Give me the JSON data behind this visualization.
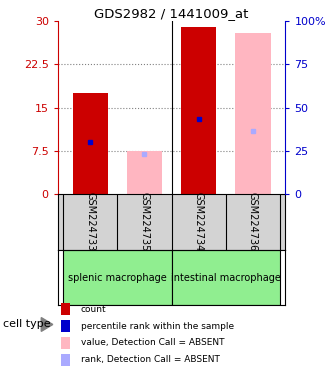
{
  "title": "GDS2982 / 1441009_at",
  "samples": [
    "GSM224733",
    "GSM224735",
    "GSM224734",
    "GSM224736"
  ],
  "red_bar_values": [
    17.5,
    null,
    29.0,
    null
  ],
  "pink_bar_values": [
    null,
    7.5,
    null,
    28.0
  ],
  "blue_marker_values": [
    9.0,
    null,
    13.0,
    null
  ],
  "light_blue_marker_values": [
    null,
    7.0,
    null,
    11.0
  ],
  "ylim": [
    0,
    30
  ],
  "yticks_left": [
    0,
    7.5,
    15,
    22.5,
    30
  ],
  "yticks_right_labels": [
    "0",
    "25",
    "50",
    "75",
    "100%"
  ],
  "yticks_right_values": [
    0,
    7.5,
    15,
    22.5,
    30
  ],
  "groups": [
    {
      "label": "splenic macrophage",
      "indices": [
        0,
        1
      ],
      "color": "#90EE90"
    },
    {
      "label": "intestinal macrophage",
      "indices": [
        2,
        3
      ],
      "color": "#90EE90"
    }
  ],
  "bar_width": 0.65,
  "red_color": "#CC0000",
  "pink_color": "#FFB6C1",
  "blue_color": "#0000CC",
  "light_blue_color": "#AAAAFF",
  "axis_left_color": "#CC0000",
  "axis_right_color": "#0000CC",
  "bg_color": "#FFFFFF",
  "plot_bg_color": "#FFFFFF",
  "sample_bg_color": "#D3D3D3",
  "legend_items": [
    {
      "color": "#CC0000",
      "label": "count"
    },
    {
      "color": "#0000CC",
      "label": "percentile rank within the sample"
    },
    {
      "color": "#FFB6C1",
      "label": "value, Detection Call = ABSENT"
    },
    {
      "color": "#AAAAFF",
      "label": "rank, Detection Call = ABSENT"
    }
  ],
  "cell_type_label": "cell type"
}
